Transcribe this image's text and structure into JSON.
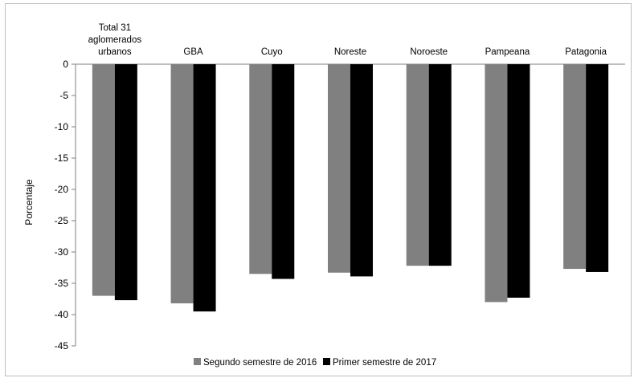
{
  "chart_data": {
    "type": "bar",
    "ylabel": "Porcentaje",
    "ylim": [
      -45,
      0
    ],
    "y_ticks": [
      0,
      -5,
      -10,
      -15,
      -20,
      -25,
      -30,
      -35,
      -40,
      -45
    ],
    "categories": [
      [
        "Total 31",
        "aglomerados",
        "urbanos"
      ],
      [
        "GBA"
      ],
      [
        "Cuyo"
      ],
      [
        "Noreste"
      ],
      [
        "Noroeste"
      ],
      [
        "Pampeana"
      ],
      [
        "Patagonia"
      ]
    ],
    "series": [
      {
        "name": "Segundo semestre de 2016",
        "color": "#808080",
        "values": [
          -37.0,
          -38.2,
          -33.5,
          -33.3,
          -32.2,
          -38.0,
          -32.7
        ]
      },
      {
        "name": "Primer semestre de 2017",
        "color": "#000000",
        "values": [
          -37.7,
          -39.5,
          -34.3,
          -33.9,
          -32.2,
          -37.3,
          -33.2
        ]
      }
    ],
    "legend_position": "bottom",
    "grid": false
  }
}
